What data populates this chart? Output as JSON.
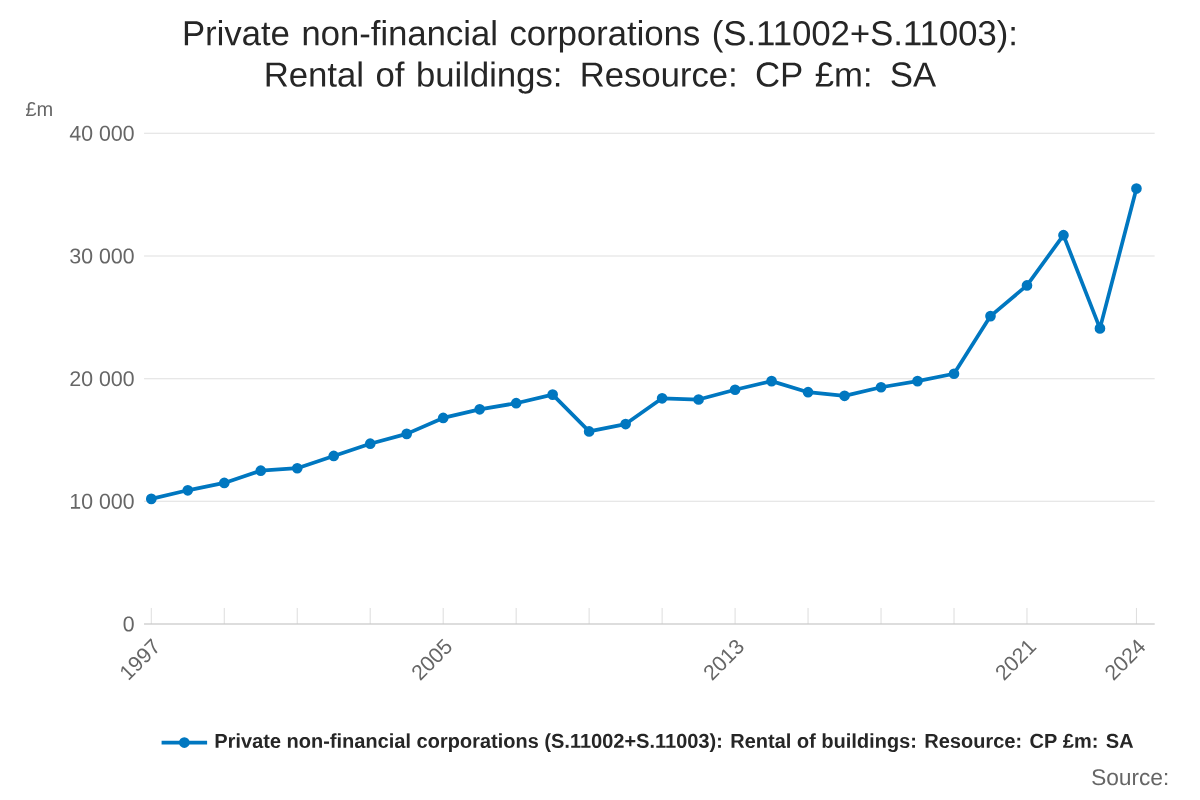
{
  "chart_data": {
    "type": "line",
    "title": "Private non-financial corporations (S.11002+S.11003): Rental of buildings: Resource: CP £m: SA",
    "ylabel": "£m",
    "x": [
      1997,
      1998,
      1999,
      2000,
      2001,
      2002,
      2003,
      2004,
      2005,
      2006,
      2007,
      2008,
      2009,
      2010,
      2011,
      2012,
      2013,
      2014,
      2015,
      2016,
      2017,
      2018,
      2019,
      2020,
      2021,
      2022,
      2023,
      2024
    ],
    "series": [
      {
        "name": "Private non-financial corporations (S.11002+S.11003): Rental of buildings: Resource: CP £m: SA",
        "color": "#0077c0",
        "values": [
          10200,
          10900,
          11500,
          12500,
          12700,
          13700,
          14700,
          15500,
          16800,
          17500,
          18000,
          18700,
          15700,
          16300,
          18400,
          18300,
          19100,
          19800,
          18900,
          18600,
          19300,
          19800,
          20400,
          25100,
          27600,
          31700,
          24100,
          35500
        ]
      }
    ],
    "xlim": [
      1996.8,
      2024.5
    ],
    "xticks": [
      1997,
      {
        "value": 1999,
        "label": null
      },
      {
        "value": 2001,
        "label": null
      },
      {
        "value": 2003,
        "label": null
      },
      2005,
      {
        "value": 2007,
        "label": null
      },
      {
        "value": 2009,
        "label": null
      },
      {
        "value": 2011,
        "label": null
      },
      2013,
      {
        "value": 2015,
        "label": null
      },
      {
        "value": 2017,
        "label": null
      },
      {
        "value": 2019,
        "label": null
      },
      2021,
      2024
    ],
    "ylim": [
      0,
      40000
    ],
    "yticks": [
      0,
      {
        "value": 10000,
        "label": "10 000"
      },
      {
        "value": 20000,
        "label": "20 000"
      },
      {
        "value": 30000,
        "label": "30 000"
      },
      {
        "value": 40000,
        "label": "40 000"
      }
    ],
    "grid": "y",
    "legend": "bottom",
    "marker": "circle",
    "line_style": "solid",
    "annotations": [
      "Source:"
    ]
  }
}
